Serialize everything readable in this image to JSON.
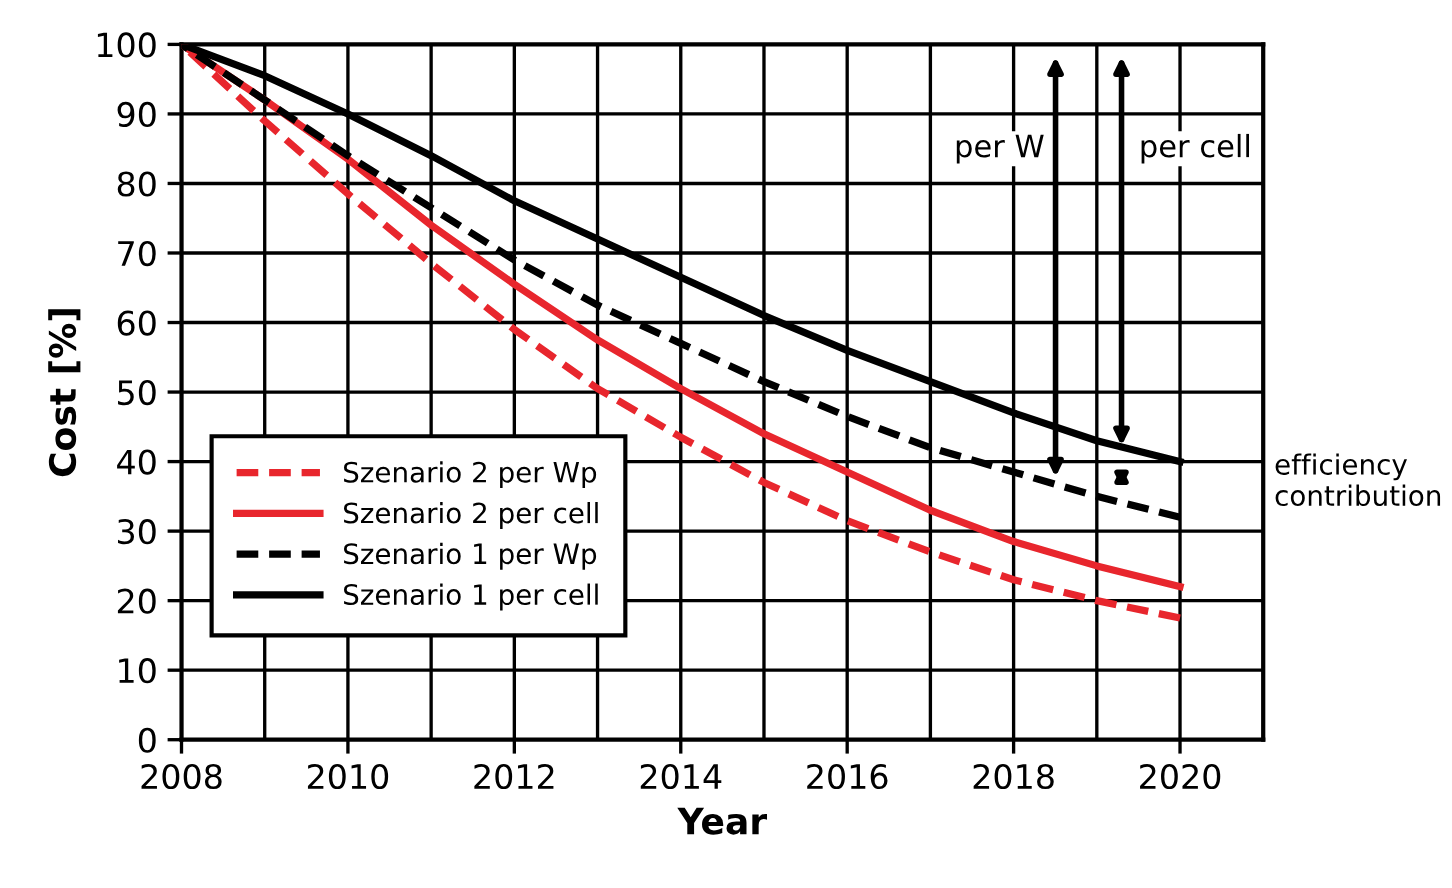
{
  "chart_data": {
    "type": "line",
    "xlabel": "Year",
    "ylabel": "Cost [%]",
    "x": [
      2008,
      2009,
      2010,
      2011,
      2012,
      2013,
      2014,
      2015,
      2016,
      2017,
      2018,
      2019,
      2020
    ],
    "series": [
      {
        "name": "Szenario 2 per Wp",
        "color": "#e8262d",
        "line_style": "dashed",
        "values": [
          100,
          89,
          78.5,
          68.5,
          59,
          50.5,
          43.5,
          37,
          31.5,
          27,
          23,
          20,
          17.5
        ]
      },
      {
        "name": "Szenario 2 per cell",
        "color": "#e8262d",
        "line_style": "solid",
        "values": [
          100,
          92,
          83.5,
          74,
          65.5,
          57.5,
          50.5,
          44,
          38.5,
          33,
          28.5,
          25,
          22
        ]
      },
      {
        "name": "Szenario 1 per Wp",
        "color": "#000000",
        "line_style": "dashed",
        "values": [
          100,
          92,
          84,
          76.5,
          69,
          62.5,
          57,
          51.5,
          46.5,
          42,
          38.5,
          35,
          32
        ]
      },
      {
        "name": "Szenario 1 per cell",
        "color": "#000000",
        "line_style": "solid",
        "values": [
          100,
          95.5,
          90,
          84,
          77.5,
          72,
          66.5,
          61,
          56,
          51.5,
          47,
          43,
          40
        ]
      }
    ],
    "xlim": [
      2008,
      2021
    ],
    "xticks": [
      2008,
      2010,
      2012,
      2014,
      2016,
      2018,
      2020
    ],
    "ylim": [
      0,
      100
    ],
    "yticks": [
      0,
      10,
      20,
      30,
      40,
      50,
      60,
      70,
      80,
      90,
      100
    ],
    "grid": true,
    "legend": "bottom left",
    "marker": "none",
    "annotations": [
      "per W",
      "per cell",
      "efficiency contribution"
    ]
  }
}
